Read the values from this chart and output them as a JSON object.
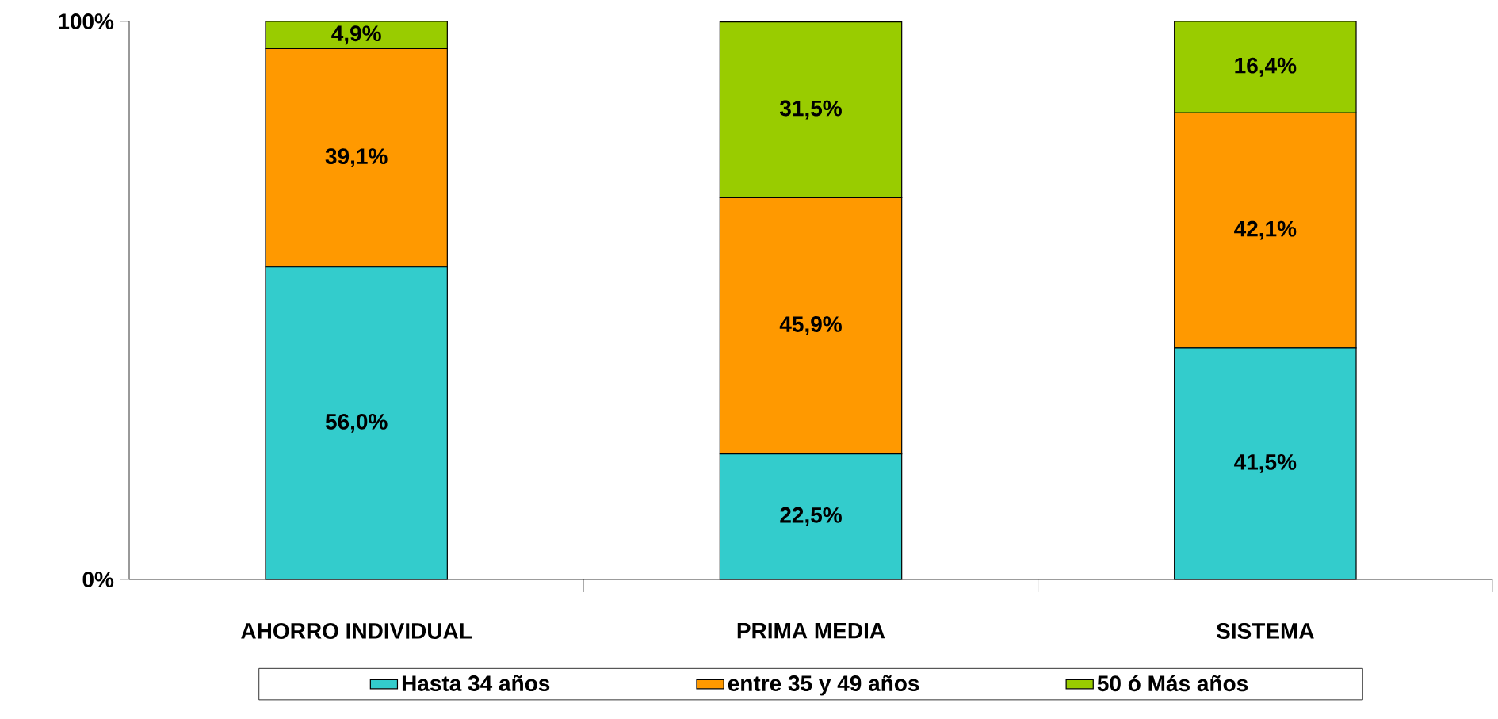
{
  "chart_data": {
    "type": "bar",
    "stacked": true,
    "categories": [
      "AHORRO INDIVIDUAL",
      "PRIMA MEDIA",
      "SISTEMA"
    ],
    "series": [
      {
        "name": "Hasta 34 años",
        "color": "#33cccc",
        "values": [
          56.0,
          22.5,
          41.5
        ],
        "value_labels": [
          "56,0%",
          "22,5%",
          "41,5%"
        ]
      },
      {
        "name": "entre 35 y 49 años",
        "color": "#ff9900",
        "values": [
          39.1,
          45.9,
          42.1
        ],
        "value_labels": [
          "39,1%",
          "45,9%",
          "42,1%"
        ]
      },
      {
        "name": "50 ó Más años",
        "color": "#99cc00",
        "values": [
          4.9,
          31.5,
          16.4
        ],
        "value_labels": [
          "4,9%",
          "31,5%",
          "16,4%"
        ]
      }
    ],
    "ylim": [
      0,
      100
    ],
    "yticks": [
      {
        "value": 0,
        "label": "0%"
      },
      {
        "value": 100,
        "label": "100%"
      }
    ],
    "grid": false,
    "legend": "bottom"
  }
}
